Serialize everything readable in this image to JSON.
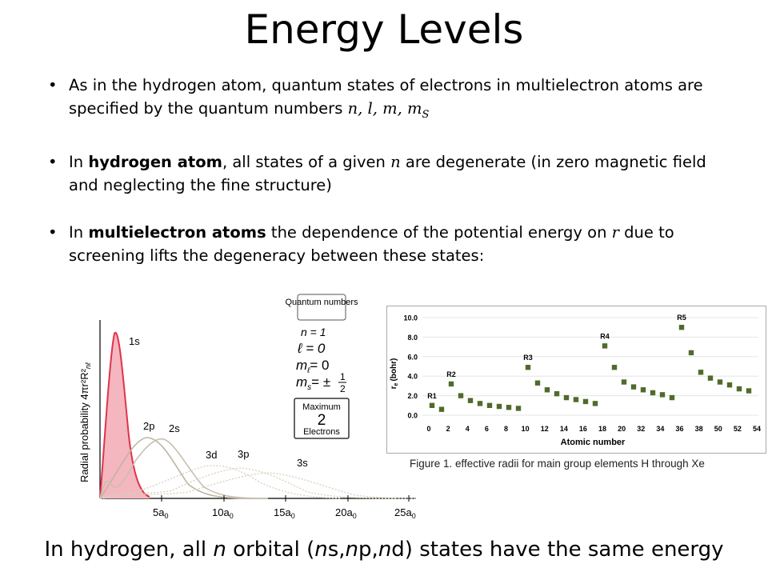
{
  "title": "Energy Levels",
  "bullets": [
    {
      "pre": "As in the hydrogen atom, quantum states of electrons in multielectron atoms are specified by the quantum numbers ",
      "math": "n, l, m, m",
      "sub": "S"
    },
    {
      "pre": "In ",
      "bold": "hydrogen atom",
      "mid": ", all states of a given ",
      "math": "n",
      "post": " are degenerate (in zero magnetic field and neglecting the fine structure)"
    },
    {
      "pre": "In ",
      "bold": "multielectron atoms",
      "mid": " the dependence of the potential energy on ",
      "math": "r",
      "post": " due to screening lifts the degeneracy between these states:"
    }
  ],
  "footer": {
    "a": "In hydrogen, all ",
    "n": "n",
    "b": " orbital (",
    "ns": "n",
    "c": "s,",
    "np": "n",
    "d": "p,",
    "nd": "n",
    "e": "d) states have the same energy"
  },
  "radial_plot": {
    "ylabel": "Radial probability 4πr²R²",
    "ylabel_sub": "nℓ",
    "curve_labels": [
      "1s",
      "2p",
      "2s",
      "3d",
      "3p",
      "3s"
    ],
    "xticks": [
      "5a",
      "10a",
      "15a",
      "20a",
      "25a"
    ],
    "xtick_sub": "0",
    "box_title": "Quantum numbers",
    "qn": [
      "n = 1",
      "ℓ = 0",
      "m",
      "= 0",
      "m",
      "= ±"
    ],
    "qn_sub": [
      "ℓ",
      "s"
    ],
    "half_num": "1",
    "half_den": "2",
    "max_label": "Maximum",
    "max_num": "2",
    "max_unit": "Electrons"
  },
  "caption": "Figure 1. effective radii for main group elements H through Xe",
  "chart_data": {
    "type": "scatter",
    "xlabel": "Atomic number",
    "ylabel": "r",
    "ylabel_sub": "e",
    "ylabel_unit": "(bohr)",
    "ylim": [
      0,
      10
    ],
    "yticks": [
      0.0,
      2.0,
      4.0,
      6.0,
      8.0,
      10.0
    ],
    "xticks": [
      0,
      2,
      4,
      6,
      8,
      10,
      12,
      14,
      16,
      18,
      20,
      32,
      34,
      36,
      38,
      50,
      52,
      54
    ],
    "color": "#4f6b2a",
    "points": [
      1.0,
      0.6,
      3.2,
      2.0,
      1.5,
      1.2,
      1.0,
      0.9,
      0.8,
      0.7,
      4.9,
      3.3,
      2.6,
      2.2,
      1.8,
      1.6,
      1.4,
      1.2,
      7.1,
      4.9,
      3.4,
      2.9,
      2.6,
      2.3,
      2.1,
      1.8,
      9.0,
      6.4,
      4.4,
      3.8,
      3.4,
      3.1,
      2.7,
      2.5
    ],
    "annotations": [
      {
        "label": "R1",
        "index": 0
      },
      {
        "label": "R2",
        "index": 2
      },
      {
        "label": "R3",
        "index": 10
      },
      {
        "label": "R4",
        "index": 18
      },
      {
        "label": "R5",
        "index": 26
      }
    ]
  }
}
